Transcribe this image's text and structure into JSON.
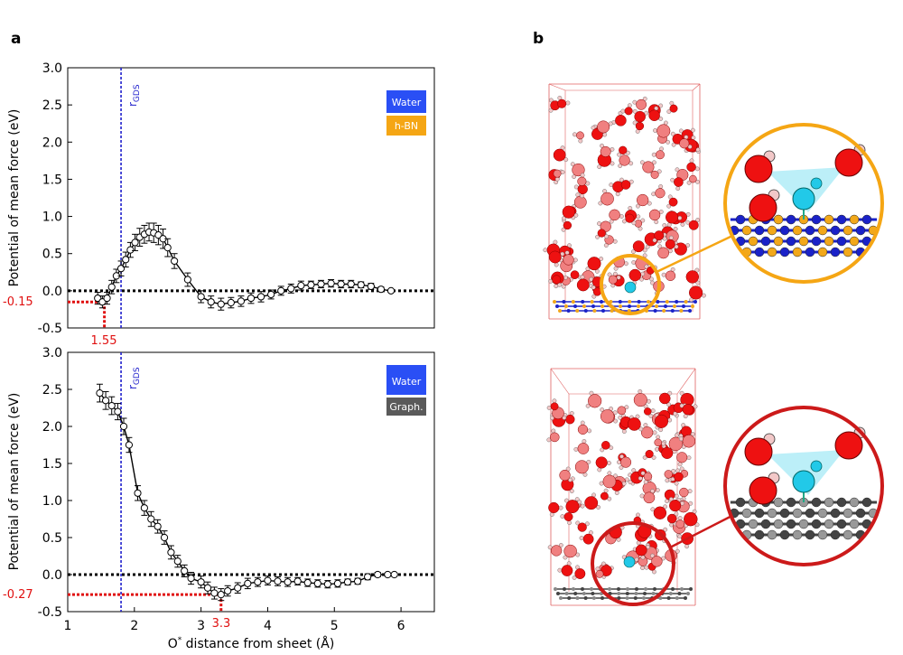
{
  "panel_labels": {
    "a": "a",
    "b": "b"
  },
  "colors": {
    "water": "#2a4ff5",
    "hbn": "#f5a614",
    "graphene": "#5a5a5a",
    "rgds": "#2020cc",
    "min_marker": "#e01010",
    "oxygen": "#ee1111",
    "hydrogen": "#f2c8c8",
    "ion": "#22c9e8",
    "boron": "#f2a81a",
    "nitrogen": "#1a22c8",
    "carbon": "#555555"
  },
  "chart_data": [
    {
      "type": "line",
      "panel": "top",
      "ylabel": "Potential of mean force (eV)",
      "xlabel": "",
      "xlim": [
        1,
        6.5
      ],
      "ylim": [
        -0.5,
        3.0
      ],
      "yticks": [
        "-0.5",
        "0.0",
        "0.5",
        "1.0",
        "1.5",
        "2.0",
        "2.5",
        "3.0"
      ],
      "legend": [
        "Water",
        "h-BN"
      ],
      "legend_position": "top-right",
      "rgds_label": "r",
      "rgds_sub": "GDS",
      "rgds_x": 1.8,
      "min_x": 1.55,
      "min_y": -0.15,
      "min_x_label": "1.55",
      "min_y_label": "-0.15",
      "series": [
        {
          "name": "PMF h-BN",
          "x": [
            1.45,
            1.52,
            1.59,
            1.66,
            1.73,
            1.8,
            1.87,
            1.94,
            2.01,
            2.08,
            2.15,
            2.22,
            2.29,
            2.36,
            2.43,
            2.5,
            2.6,
            2.8,
            3.0,
            3.15,
            3.3,
            3.45,
            3.6,
            3.75,
            3.9,
            4.05,
            4.2,
            4.35,
            4.5,
            4.65,
            4.8,
            4.95,
            5.1,
            5.25,
            5.4,
            5.55,
            5.7,
            5.85
          ],
          "y": [
            -0.1,
            -0.15,
            -0.1,
            0.05,
            0.2,
            0.3,
            0.42,
            0.55,
            0.65,
            0.72,
            0.76,
            0.79,
            0.78,
            0.75,
            0.7,
            0.58,
            0.4,
            0.15,
            -0.08,
            -0.15,
            -0.18,
            -0.16,
            -0.14,
            -0.1,
            -0.08,
            -0.05,
            0.0,
            0.03,
            0.07,
            0.08,
            0.09,
            0.1,
            0.09,
            0.09,
            0.08,
            0.06,
            0.02,
            0.0
          ],
          "err": [
            0.08,
            0.08,
            0.08,
            0.09,
            0.09,
            0.1,
            0.1,
            0.1,
            0.11,
            0.12,
            0.12,
            0.12,
            0.13,
            0.13,
            0.13,
            0.12,
            0.1,
            0.09,
            0.08,
            0.08,
            0.08,
            0.07,
            0.07,
            0.07,
            0.07,
            0.06,
            0.06,
            0.06,
            0.06,
            0.05,
            0.05,
            0.05,
            0.05,
            0.05,
            0.04,
            0.04,
            0.03,
            0.02
          ]
        }
      ]
    },
    {
      "type": "line",
      "panel": "bottom",
      "ylabel": "Potential of mean force (eV)",
      "xlabel_prefix": "O",
      "xlabel_sup": "*",
      "xlabel_suffix": " distance from sheet (Å)",
      "xlim": [
        1,
        6.5
      ],
      "ylim": [
        -0.5,
        3.0
      ],
      "xticks": [
        "1",
        "2",
        "3",
        "4",
        "5",
        "6"
      ],
      "yticks": [
        "-0.5",
        "0.0",
        "0.5",
        "1.0",
        "1.5",
        "2.0",
        "2.5",
        "3.0"
      ],
      "legend": [
        "Water",
        "Graph."
      ],
      "legend_position": "top-right",
      "rgds_label": "r",
      "rgds_sub": "GDS",
      "rgds_x": 1.8,
      "min_x": 3.3,
      "min_y": -0.27,
      "min_x_label": "3.3",
      "min_y_label": "-0.27",
      "series": [
        {
          "name": "PMF graphene",
          "x": [
            1.48,
            1.57,
            1.66,
            1.75,
            1.84,
            1.92,
            2.05,
            2.15,
            2.25,
            2.35,
            2.45,
            2.55,
            2.65,
            2.75,
            2.85,
            3.0,
            3.1,
            3.2,
            3.3,
            3.4,
            3.55,
            3.7,
            3.85,
            4.0,
            4.15,
            4.3,
            4.45,
            4.6,
            4.75,
            4.9,
            5.05,
            5.2,
            5.35,
            5.5,
            5.65,
            5.8,
            5.9
          ],
          "y": [
            2.45,
            2.35,
            2.28,
            2.2,
            2.0,
            1.75,
            1.1,
            0.9,
            0.75,
            0.65,
            0.5,
            0.3,
            0.18,
            0.05,
            -0.05,
            -0.1,
            -0.18,
            -0.25,
            -0.27,
            -0.22,
            -0.18,
            -0.12,
            -0.1,
            -0.08,
            -0.09,
            -0.1,
            -0.09,
            -0.11,
            -0.12,
            -0.13,
            -0.12,
            -0.1,
            -0.09,
            -0.03,
            0.0,
            0.0,
            0.0
          ],
          "err": [
            0.12,
            0.12,
            0.12,
            0.11,
            0.11,
            0.1,
            0.1,
            0.1,
            0.1,
            0.09,
            0.09,
            0.09,
            0.08,
            0.08,
            0.08,
            0.08,
            0.08,
            0.08,
            0.08,
            0.07,
            0.07,
            0.07,
            0.06,
            0.06,
            0.06,
            0.06,
            0.05,
            0.05,
            0.05,
            0.05,
            0.05,
            0.04,
            0.04,
            0.04,
            0.03,
            0.02,
            0.02
          ]
        }
      ]
    }
  ]
}
